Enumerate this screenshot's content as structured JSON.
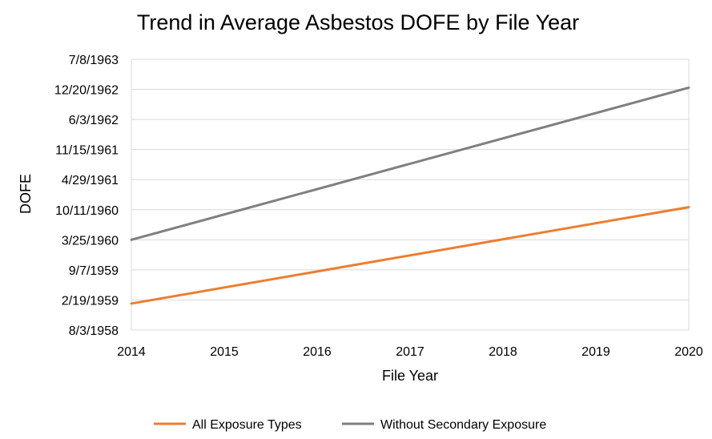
{
  "chart_data": {
    "type": "line",
    "title": "Trend in Average Asbestos DOFE by File Year",
    "xlabel": "File Year",
    "ylabel": "DOFE",
    "x": [
      2014,
      2020
    ],
    "x_ticks": [
      "2014",
      "2015",
      "2016",
      "2017",
      "2018",
      "2019",
      "2020"
    ],
    "y_ticks": [
      "8/3/1958",
      "2/19/1959",
      "9/7/1959",
      "3/25/1960",
      "10/11/1960",
      "4/29/1961",
      "11/15/1961",
      "6/3/1962",
      "12/20/1962",
      "7/8/1963"
    ],
    "ylim": [
      "1958-08-03",
      "1963-07-08"
    ],
    "grid": true,
    "legend_position": "bottom",
    "series": [
      {
        "name": "All Exposure Types",
        "color": "#ED7D31",
        "values": [
          "1959-01-26",
          "1960-10-28"
        ]
      },
      {
        "name": "Without Secondary Exposure",
        "color": "#7F7F7F",
        "values": [
          "1960-03-25",
          "1962-12-31"
        ]
      }
    ]
  }
}
